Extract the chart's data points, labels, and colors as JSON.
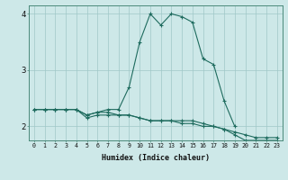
{
  "x": [
    0,
    1,
    2,
    3,
    4,
    5,
    6,
    7,
    8,
    9,
    10,
    11,
    12,
    13,
    14,
    15,
    16,
    17,
    18,
    19,
    20,
    21,
    22,
    23
  ],
  "line1": [
    2.3,
    2.3,
    2.3,
    2.3,
    2.3,
    2.2,
    2.25,
    2.25,
    2.2,
    2.2,
    2.15,
    2.1,
    2.1,
    2.1,
    2.05,
    2.05,
    2.0,
    2.0,
    1.95,
    1.9,
    1.85,
    1.8,
    1.8,
    1.8
  ],
  "line2": [
    2.3,
    2.3,
    2.3,
    2.3,
    2.3,
    2.2,
    2.25,
    2.3,
    2.3,
    2.7,
    3.5,
    4.0,
    3.8,
    4.0,
    3.95,
    3.85,
    3.2,
    3.1,
    2.45,
    2.0,
    null,
    null,
    null,
    null
  ],
  "line3": [
    2.3,
    2.3,
    2.3,
    2.3,
    2.3,
    2.15,
    2.2,
    2.2,
    2.2,
    2.2,
    2.15,
    2.1,
    2.1,
    2.1,
    2.1,
    2.1,
    2.05,
    2.0,
    1.95,
    1.85,
    1.75,
    1.75,
    1.75,
    1.75
  ],
  "bg_color": "#cde8e8",
  "grid_color": "#a0c8c8",
  "line_color": "#1e6b5e",
  "xlabel": "Humidex (Indice chaleur)",
  "xlim": [
    -0.5,
    23.5
  ],
  "ylim": [
    1.75,
    4.15
  ],
  "yticks": [
    2,
    3,
    4
  ],
  "xticks": [
    0,
    1,
    2,
    3,
    4,
    5,
    6,
    7,
    8,
    9,
    10,
    11,
    12,
    13,
    14,
    15,
    16,
    17,
    18,
    19,
    20,
    21,
    22,
    23
  ]
}
